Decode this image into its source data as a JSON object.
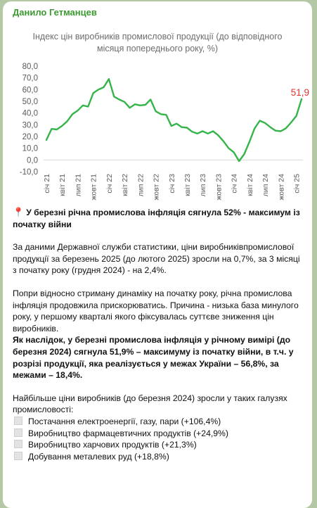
{
  "message": {
    "sender": "Данило Гетманцев",
    "headline": "У березні річна промислова інфляція сягнула 52% - максимум із початку війни",
    "paragraphs": {
      "p1": "За даними Державної служби статистики, ціни виробниківпромислової продукції за березень 2025 (до лютого 2025) зросли на 0,7%, за 3 місяці з початку року (грудня 2024)  - на 2,4%.",
      "p2": "Попри відносно стриману динаміку на початку року, річна промислова інфляція продовжила прискорюватись. Причина - низька база минулого року, у першому кварталі якого фіксувалась суттєве зниження цін виробників.",
      "p3_bold": "Як наслідок, у березні промислова інфляція у річному вимірі (до березня 2024) сягнула 51,9% – максимуму із початку війни, в т.ч. у розрізі продукції, яка реалізується у межах України – 56,8%, за межами – 18,4%.",
      "p4": "Найбільше ціни виробників (до березня 2024) зросли у таких галузях промисловості:"
    },
    "list": [
      "Постачання електроенергії, газу, пари (+106,4%)",
      "Виробництво фармацевтичних продуктів (+24,9%)",
      "Виробництво харчових продуктів (+21,3%)",
      "Добування металевих руд (+18,8%)"
    ]
  },
  "chart_data": {
    "type": "line",
    "title": "Індекс цін виробників промислової продукції (до відповідного місяця попереднього року, %)",
    "ylim": [
      -10,
      80
    ],
    "yticks": [
      "80,0",
      "70,0",
      "60,0",
      "50,0",
      "40,0",
      "30,0",
      "20,0",
      "10,0",
      "0,0",
      "-10,0"
    ],
    "xtick_labels": [
      "січ 21",
      "квіт 21",
      "лип 21",
      "жовт 21",
      "січ 22",
      "квіт 22",
      "лип 22",
      "жовт 22",
      "січ 23",
      "квіт 23",
      "лип 23",
      "жовт 23",
      "січ 24",
      "квіт 24",
      "лип 24",
      "жовт 24",
      "січ 25"
    ],
    "end_label": "51,9",
    "line_color": "#35b44a",
    "end_label_color": "#e0342f",
    "series": [
      {
        "values": [
          17,
          26.5,
          26,
          29,
          33,
          39,
          42,
          46.5,
          45.5,
          57,
          60,
          62,
          69,
          54,
          51.5,
          49.5,
          44.5,
          47.5,
          46.5,
          47,
          51.5,
          41.5,
          39,
          38.5,
          29,
          31,
          28,
          27.5,
          24,
          22.5,
          24.5,
          22.5,
          24.5,
          21,
          16,
          10,
          6.5,
          -1,
          5,
          15.5,
          27,
          33.5,
          31.5,
          28,
          25,
          24.5,
          27,
          32,
          37.5,
          51.9
        ]
      }
    ]
  }
}
